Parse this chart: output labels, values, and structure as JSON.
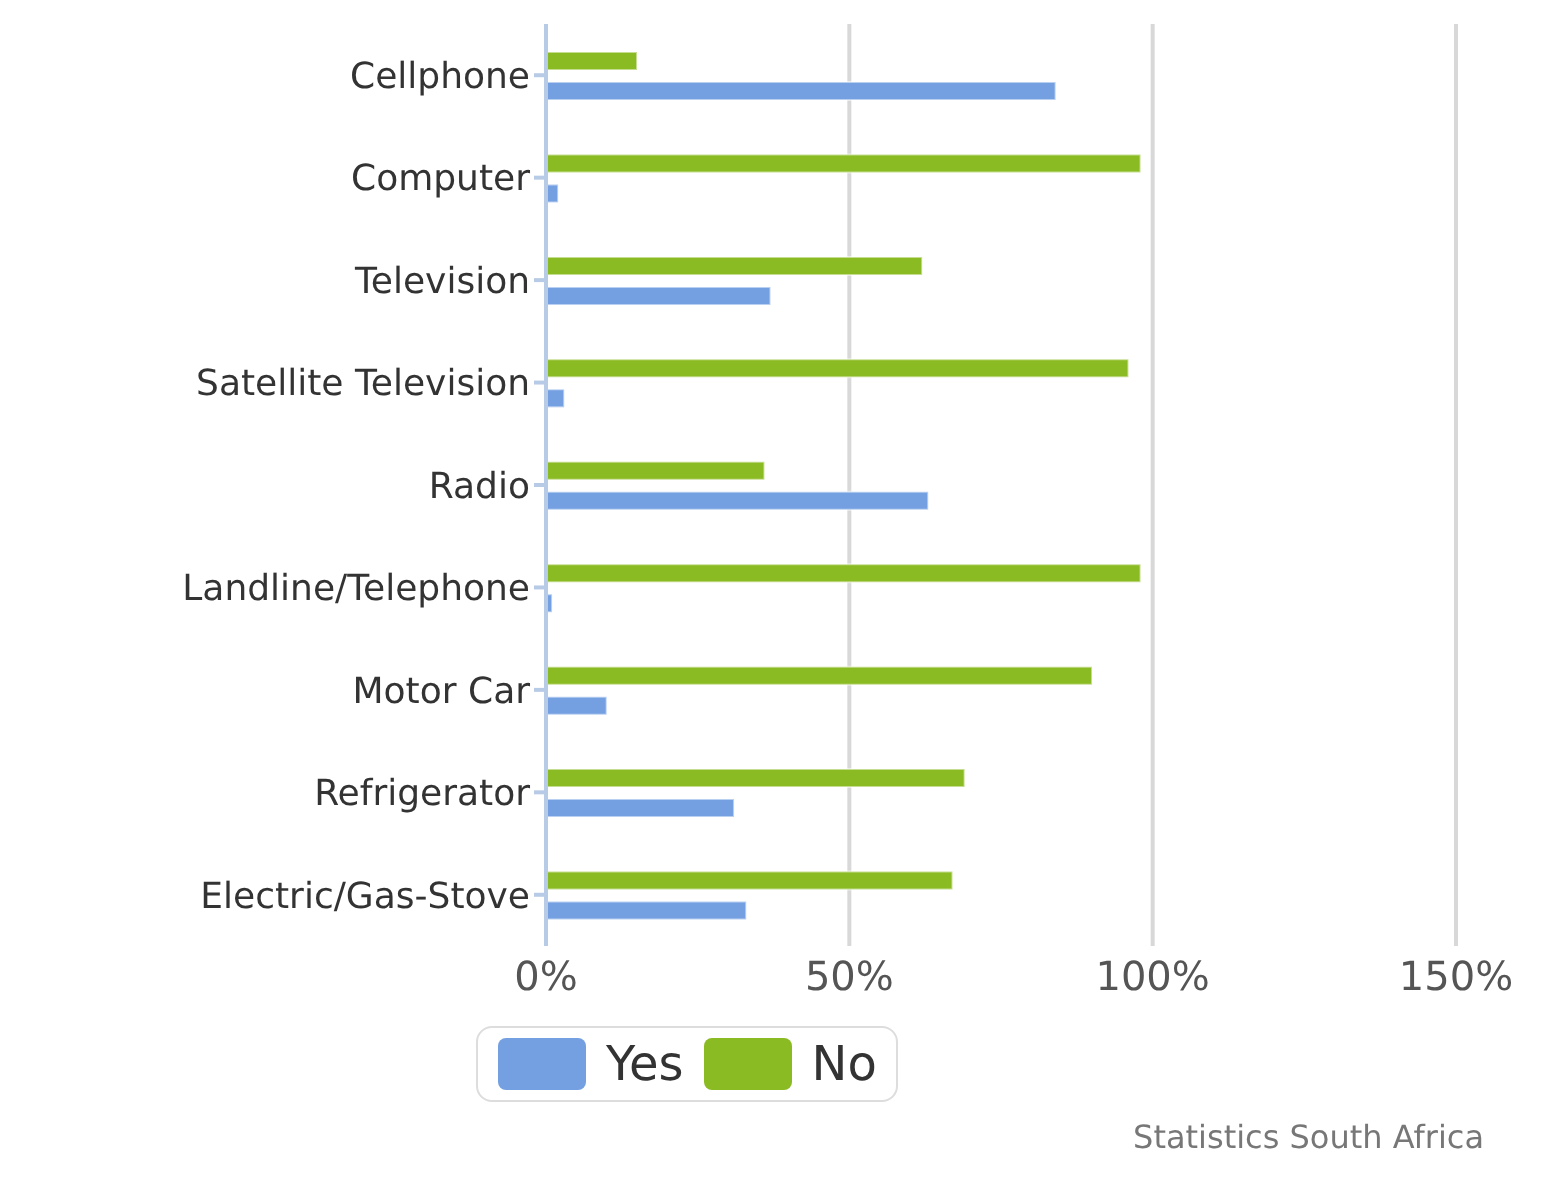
{
  "chart_data": {
    "type": "bar",
    "orientation": "horizontal",
    "categories": [
      "Cellphone",
      "Computer",
      "Television",
      "Satellite Television",
      "Radio",
      "Landline/Telephone",
      "Motor Car",
      "Refrigerator",
      "Electric/Gas-Stove"
    ],
    "series": [
      {
        "name": "Yes",
        "color": "#74a0e2",
        "values": [
          84,
          2,
          37,
          3,
          63,
          1,
          10,
          31,
          33
        ]
      },
      {
        "name": "No",
        "color": "#8bbb22",
        "values": [
          15,
          98,
          62,
          96,
          36,
          98,
          90,
          69,
          67
        ]
      }
    ],
    "xlim": [
      0,
      150
    ],
    "xticks": [
      {
        "value": 0,
        "label": "0%"
      },
      {
        "value": 50,
        "label": "50%"
      },
      {
        "value": 100,
        "label": "100%"
      },
      {
        "value": 150,
        "label": "150%"
      }
    ],
    "grid": "x",
    "legend": "bottom",
    "annotations": [
      "Statistics South Africa"
    ]
  }
}
